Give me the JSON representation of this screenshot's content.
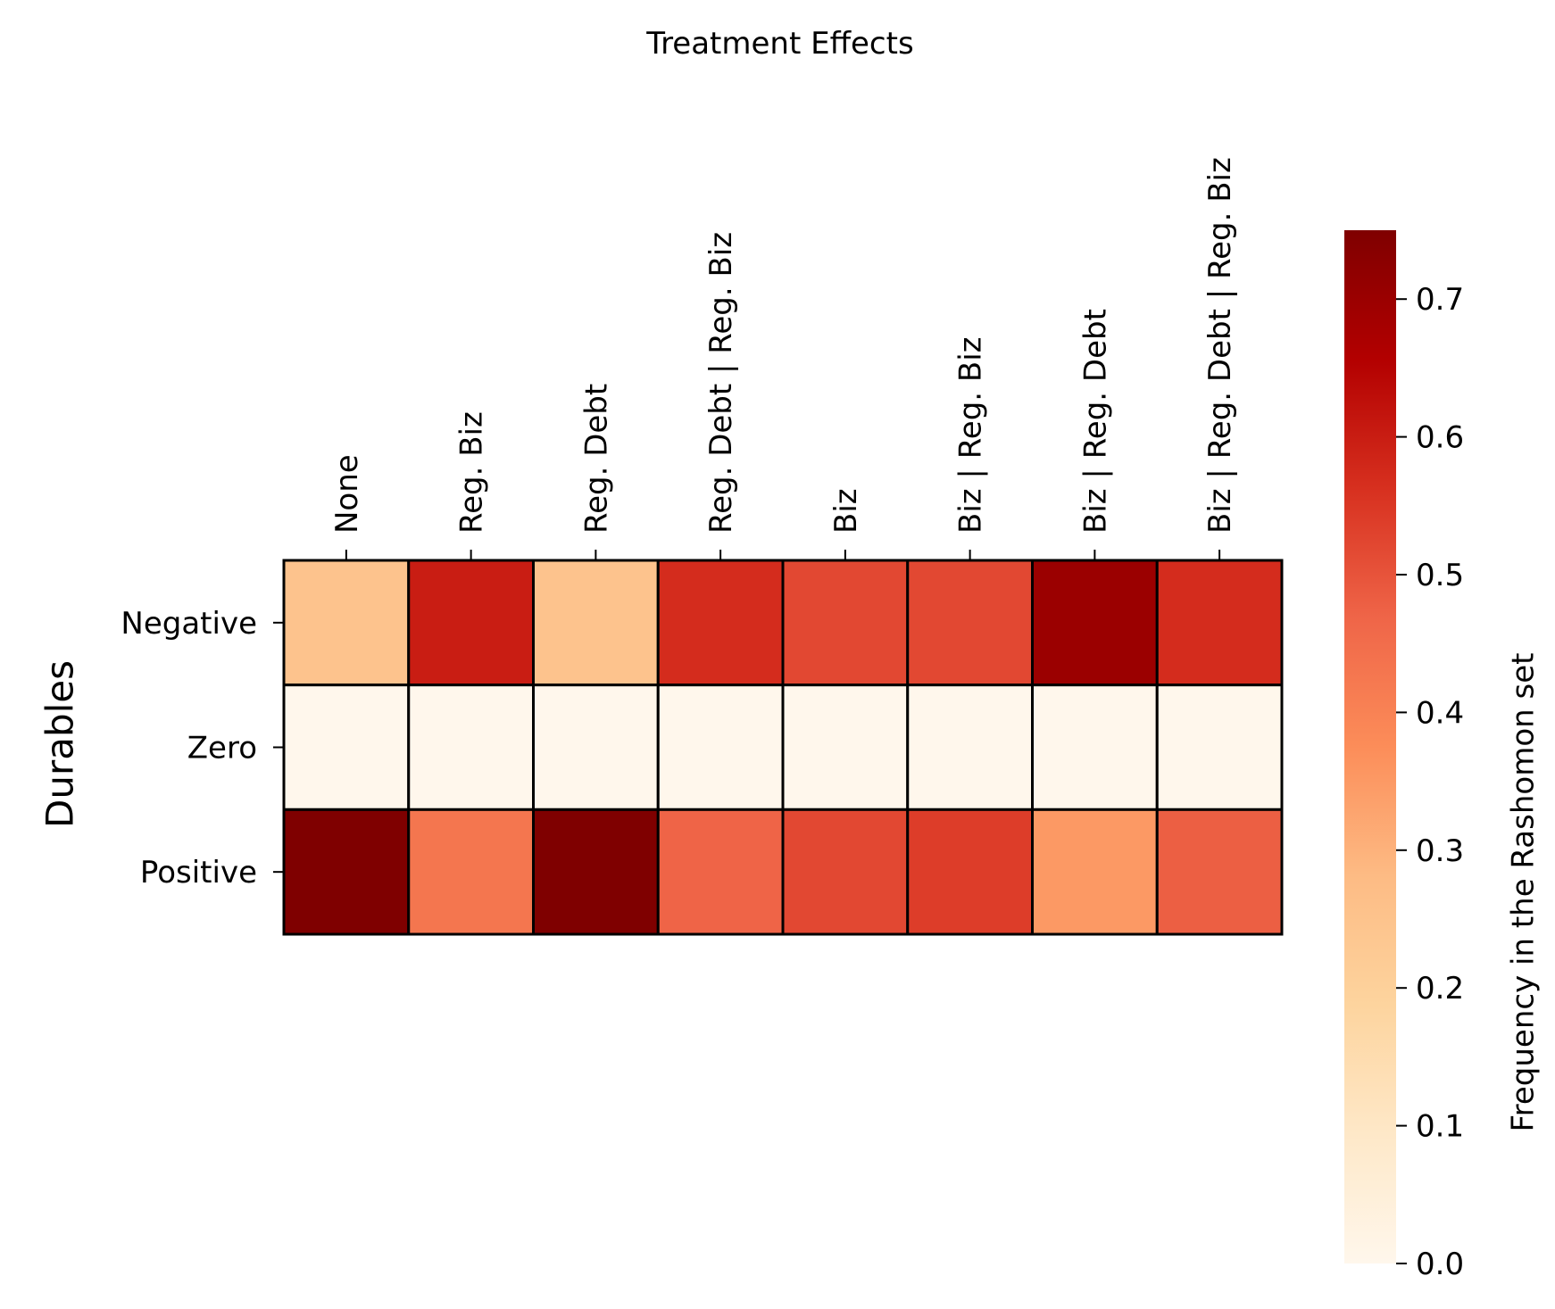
{
  "chart_data": {
    "type": "heatmap",
    "title": "Treatment Effects",
    "ylabel": "Durables",
    "x_categories": [
      "None",
      "Reg. Biz",
      "Reg. Debt",
      "Reg. Debt | Reg. Biz",
      "Biz",
      "Biz | Reg. Biz",
      "Biz | Reg. Debt",
      "Biz | Reg. Debt | Reg. Biz"
    ],
    "y_categories": [
      "Negative",
      "Zero",
      "Positive"
    ],
    "values": [
      [
        0.25,
        0.6,
        0.25,
        0.57,
        0.52,
        0.52,
        0.7,
        0.57
      ],
      [
        0.0,
        0.0,
        0.0,
        0.0,
        0.0,
        0.0,
        0.0,
        0.0
      ],
      [
        0.75,
        0.43,
        0.75,
        0.47,
        0.52,
        0.54,
        0.35,
        0.48
      ]
    ],
    "x_axis_position": "top",
    "colorbar": {
      "label": "Frequency in the Rashomon set",
      "range": [
        0,
        0.75
      ],
      "ticks": [
        0.0,
        0.1,
        0.2,
        0.3,
        0.4,
        0.5,
        0.6,
        0.7
      ],
      "tick_labels": [
        "0.0",
        "0.1",
        "0.2",
        "0.3",
        "0.4",
        "0.5",
        "0.6",
        "0.7"
      ],
      "colormap": "OrRd",
      "colormap_stops": [
        "#fff7ec",
        "#fee8c8",
        "#fdd49e",
        "#fdbb84",
        "#fc8d59",
        "#ef6548",
        "#d7301f",
        "#b30000",
        "#7f0000"
      ]
    },
    "grid": false,
    "cell_border_color": "#000000"
  }
}
